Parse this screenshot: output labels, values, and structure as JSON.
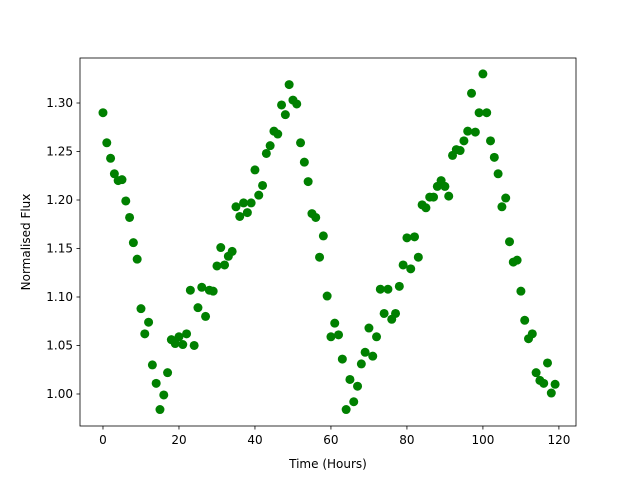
{
  "chart_data": {
    "type": "scatter",
    "xlabel": "Time (Hours)",
    "ylabel": "Normalised Flux",
    "color": "#008000",
    "x": [
      0,
      1,
      2,
      3,
      4,
      5,
      6,
      7,
      8,
      9,
      10,
      11,
      12,
      13,
      14,
      15,
      16,
      17,
      18,
      19,
      20,
      21,
      22,
      23,
      24,
      25,
      26,
      27,
      28,
      29,
      30,
      31,
      32,
      33,
      34,
      35,
      36,
      37,
      38,
      39,
      40,
      41,
      42,
      43,
      44,
      45,
      46,
      47,
      48,
      49,
      50,
      51,
      52,
      53,
      54,
      55,
      56,
      57,
      58,
      59,
      60,
      61,
      62,
      63,
      64,
      65,
      66,
      67,
      68,
      69,
      70,
      71,
      72,
      73,
      74,
      75,
      76,
      77,
      78,
      79,
      80,
      81,
      82,
      83,
      84,
      85,
      86,
      87,
      88,
      89,
      90,
      91,
      92,
      93,
      94,
      95,
      96,
      97,
      98,
      99,
      100,
      101,
      102,
      103,
      104,
      105,
      106,
      107,
      108,
      109,
      110,
      111,
      112,
      113,
      114,
      115,
      116,
      117,
      118,
      119
    ],
    "values": [
      1.29,
      1.259,
      1.243,
      1.227,
      1.22,
      1.221,
      1.199,
      1.182,
      1.156,
      1.139,
      1.088,
      1.062,
      1.074,
      1.03,
      1.011,
      0.984,
      0.999,
      1.022,
      1.056,
      1.052,
      1.059,
      1.051,
      1.062,
      1.107,
      1.05,
      1.089,
      1.11,
      1.08,
      1.107,
      1.106,
      1.132,
      1.151,
      1.133,
      1.142,
      1.147,
      1.193,
      1.183,
      1.197,
      1.187,
      1.197,
      1.231,
      1.205,
      1.215,
      1.248,
      1.256,
      1.271,
      1.268,
      1.298,
      1.288,
      1.319,
      1.303,
      1.299,
      1.259,
      1.239,
      1.219,
      1.186,
      1.182,
      1.141,
      1.163,
      1.101,
      1.059,
      1.073,
      1.061,
      1.036,
      0.984,
      1.015,
      0.992,
      1.008,
      1.031,
      1.043,
      1.068,
      1.039,
      1.059,
      1.108,
      1.083,
      1.108,
      1.077,
      1.083,
      1.111,
      1.133,
      1.161,
      1.129,
      1.162,
      1.141,
      1.195,
      1.192,
      1.203,
      1.203,
      1.214,
      1.22,
      1.214,
      1.204,
      1.246,
      1.252,
      1.251,
      1.261,
      1.271,
      1.31,
      1.27,
      1.29,
      1.33,
      1.29,
      1.261,
      1.244,
      1.227,
      1.193,
      1.202,
      1.157,
      1.136,
      1.138,
      1.106,
      1.076,
      1.057,
      1.062,
      1.022,
      1.014,
      1.011,
      1.032,
      1.001,
      1.01
    ],
    "xlim": [
      -6.05,
      124.5
    ],
    "xticks": [
      0,
      20,
      40,
      60,
      80,
      100,
      120
    ],
    "ylim": [
      0.967,
      1.3464
    ],
    "yticks": [
      {
        "value": 1.0,
        "label": "1.00"
      },
      {
        "value": 1.05,
        "label": "1.05"
      },
      {
        "value": 1.1,
        "label": "1.10"
      },
      {
        "value": 1.15,
        "label": "1.15"
      },
      {
        "value": 1.2,
        "label": "1.20"
      },
      {
        "value": 1.25,
        "label": "1.25"
      },
      {
        "value": 1.3,
        "label": "1.30"
      }
    ]
  }
}
